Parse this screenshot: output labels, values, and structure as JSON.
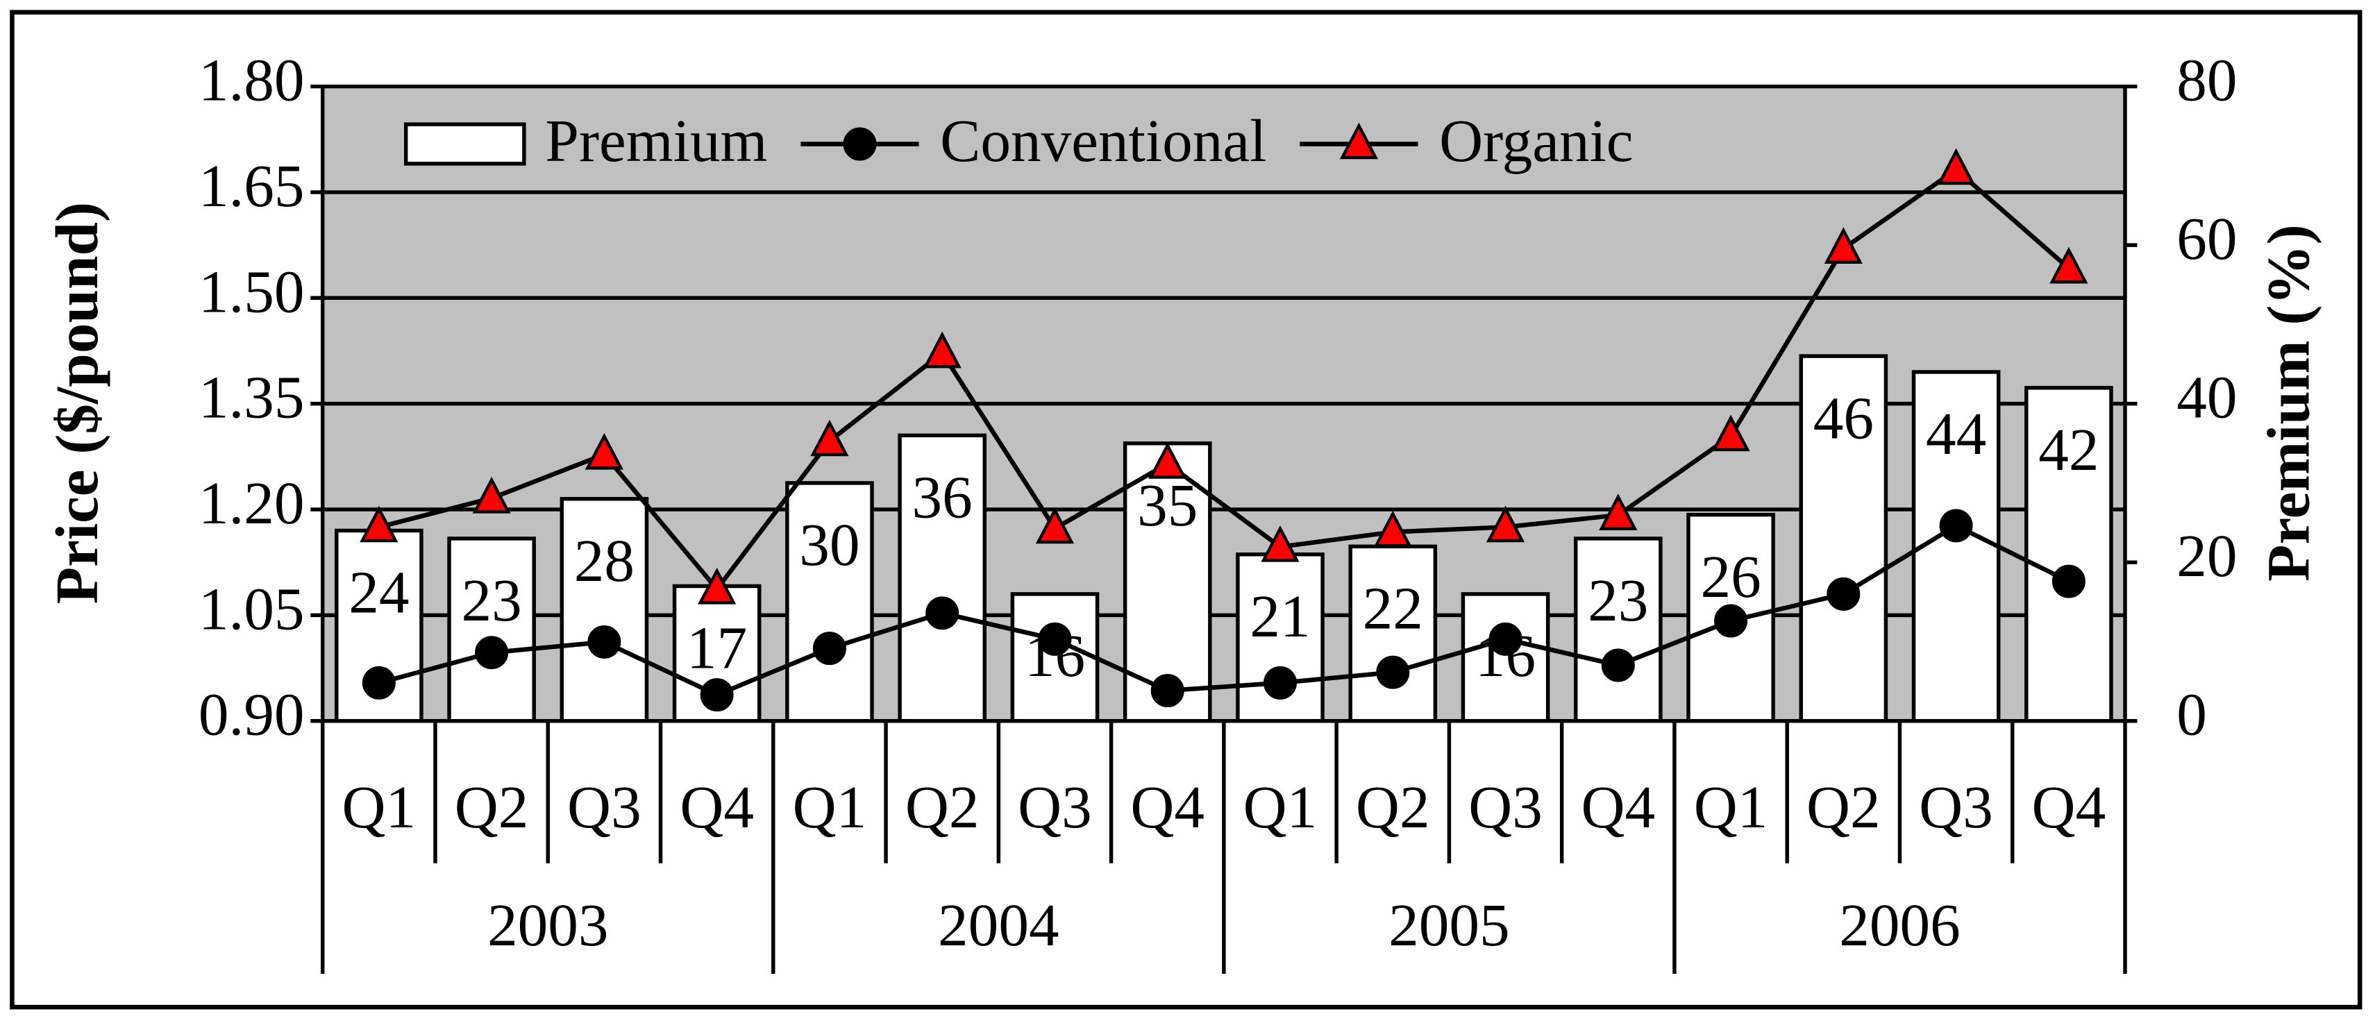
{
  "chart_data": {
    "type": "bar-line",
    "y_label": "Price ($/pound)",
    "y2_label": "Premium (%)",
    "categories": [
      "Q1",
      "Q2",
      "Q3",
      "Q4",
      "Q1",
      "Q2",
      "Q3",
      "Q4",
      "Q1",
      "Q2",
      "Q3",
      "Q4",
      "Q1",
      "Q2",
      "Q3",
      "Q4"
    ],
    "category_groups": [
      "2003",
      "2004",
      "2005",
      "2006"
    ],
    "ylim": [
      0.9,
      1.8
    ],
    "yticks": [
      {
        "value": 0.9,
        "label": "0.90"
      },
      1.05,
      {
        "value": 1.2,
        "label": "1.20"
      },
      1.35,
      {
        "value": 1.5,
        "label": "1.50"
      },
      1.65,
      {
        "value": 1.8,
        "label": "1.80"
      }
    ],
    "y2lim": [
      0,
      80
    ],
    "y2ticks": [
      0,
      20,
      40,
      60,
      80
    ],
    "grid": true,
    "background": "#c0c0c0",
    "legend": "top",
    "series": [
      {
        "name": "Premium",
        "type": "bar",
        "axis": "y2",
        "color": "#ffffff",
        "values": [
          24,
          23,
          28,
          17,
          30,
          36,
          16,
          35,
          21,
          22,
          16,
          23,
          26,
          46,
          44,
          42
        ]
      },
      {
        "name": "Conventional",
        "type": "line",
        "marker": "circle",
        "color": "#000000",
        "values": [
          0.954,
          0.997,
          1.012,
          0.937,
          1.003,
          1.053,
          1.016,
          0.943,
          0.954,
          0.969,
          1.016,
          0.979,
          1.042,
          1.08,
          1.177,
          1.098
        ]
      },
      {
        "name": "Organic",
        "type": "line",
        "marker": "triangle",
        "color": "#ff0000",
        "values": [
          1.175,
          1.216,
          1.278,
          1.087,
          1.297,
          1.422,
          1.173,
          1.265,
          1.147,
          1.168,
          1.175,
          1.192,
          1.304,
          1.57,
          1.682,
          1.542
        ]
      }
    ]
  }
}
